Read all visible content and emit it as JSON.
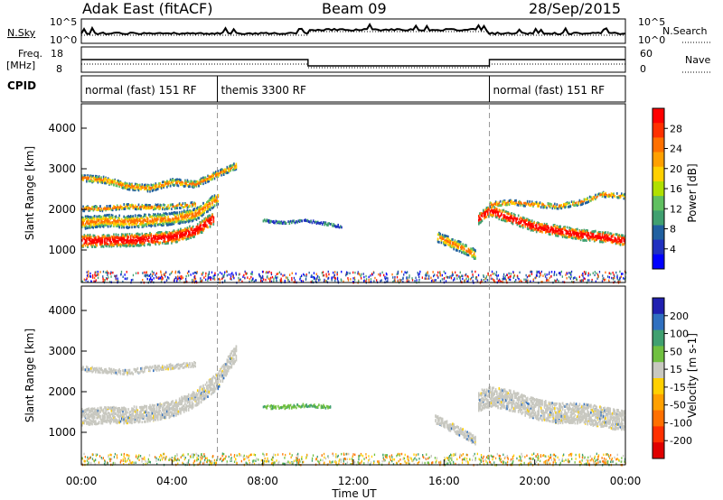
{
  "header": {
    "title": "Adak East (fitACF)",
    "beam": "Beam 09",
    "date": "28/Sep/2015"
  },
  "panel_nsky": {
    "label": "N.Sky",
    "ytick_top": "10^5",
    "ytick_bottom": "10^0",
    "right_label": "N.Search",
    "right_tick_top": "10^5",
    "right_tick_bottom": "10^0"
  },
  "panel_freq": {
    "label_line1": "Freq.",
    "label_line2": "[MHz]",
    "tick_top": "18",
    "tick_bottom": "8",
    "right_label": "Nave",
    "right_tick_top": "60",
    "right_tick_bottom": "0"
  },
  "panel_cpid": {
    "label": "CPID",
    "segments": [
      {
        "label": "normal (fast) 151 RF",
        "start_hour": 0,
        "end_hour": 6
      },
      {
        "label": "themis 3300 RF",
        "start_hour": 6,
        "end_hour": 18
      },
      {
        "label": "normal (fast) 151 RF",
        "start_hour": 18,
        "end_hour": 24
      }
    ]
  },
  "colorbars": {
    "power": {
      "label": "Power [dB]",
      "ticks": [
        "28",
        "24",
        "20",
        "16",
        "12",
        "8",
        "4"
      ],
      "colors": [
        "#ff0000",
        "#ff3000",
        "#ff7000",
        "#ffa000",
        "#ffd000",
        "#b0e000",
        "#60c060",
        "#40a070",
        "#2060a0",
        "#2030c0",
        "#0000ff"
      ]
    },
    "velocity": {
      "label": "Velocity [m s-1]",
      "ticks": [
        "200",
        "100",
        "50",
        "15",
        "-15",
        "-50",
        "-100",
        "-200"
      ],
      "colors": [
        "#2020b0",
        "#3070c0",
        "#40a070",
        "#70c040",
        "#c8c8c0",
        "#ffd000",
        "#ffa000",
        "#ff7000",
        "#ff3000",
        "#e00000"
      ]
    }
  },
  "chart_data": [
    {
      "type": "heatmap",
      "parameter": "Power",
      "ylabel": "Slant Range [km]",
      "ylim": [
        200,
        4600
      ],
      "yticks": [
        "4000",
        "3000",
        "2000",
        "1000"
      ],
      "xlim": [
        0,
        24
      ],
      "series": [
        {
          "hours": [
            0,
            1,
            2,
            3,
            4,
            5,
            5.8
          ],
          "center_km": [
            1250,
            1260,
            1270,
            1300,
            1350,
            1500,
            1800
          ],
          "width_km": 300,
          "level": "high"
        },
        {
          "hours": [
            0,
            1,
            2,
            3,
            4,
            5,
            6
          ],
          "center_km": [
            1700,
            1750,
            1720,
            1760,
            1800,
            1900,
            2300
          ],
          "width_km": 300,
          "level": "mid"
        },
        {
          "hours": [
            0,
            1,
            2,
            3,
            4,
            5
          ],
          "center_km": [
            2050,
            2050,
            2100,
            2080,
            2100,
            2150
          ],
          "width_km": 120,
          "level": "mid"
        },
        {
          "hours": [
            0,
            1,
            2,
            3,
            4,
            5,
            6,
            6.8
          ],
          "center_km": [
            2800,
            2750,
            2600,
            2550,
            2700,
            2650,
            2900,
            3100
          ],
          "width_km": 160,
          "level": "mid"
        },
        {
          "hours": [
            15.7,
            16.3,
            16.9,
            17.4
          ],
          "center_km": [
            1350,
            1200,
            1050,
            900
          ],
          "width_km": 250,
          "level": "mid"
        },
        {
          "hours": [
            17.5,
            18,
            19,
            20,
            21,
            22,
            23,
            24
          ],
          "center_km": [
            1800,
            2000,
            1800,
            1600,
            1500,
            1400,
            1350,
            1250
          ],
          "width_km": 260,
          "level": "high"
        },
        {
          "hours": [
            18,
            19,
            20,
            21,
            22,
            23,
            24
          ],
          "center_km": [
            2150,
            2200,
            2150,
            2100,
            2200,
            2400,
            2350
          ],
          "width_km": 120,
          "level": "mid"
        },
        {
          "hours": [
            8,
            9,
            9.8,
            10.5,
            11.5
          ],
          "center_km": [
            1750,
            1700,
            1750,
            1700,
            1600
          ],
          "width_km": 60,
          "level": "low"
        }
      ]
    },
    {
      "type": "heatmap",
      "parameter": "Velocity",
      "ylabel": "Slant Range [km]",
      "ylim": [
        200,
        4600
      ],
      "yticks": [
        "4000",
        "3000",
        "2000",
        "1000"
      ],
      "xlim": [
        0,
        24
      ],
      "xticks": [
        "00:00",
        "04:00",
        "08:00",
        "12:00",
        "16:00",
        "20:00",
        "00:00"
      ],
      "xlabel": "Time UT",
      "series": [
        {
          "hours": [
            0,
            1,
            2,
            3,
            4,
            5,
            6,
            6.8
          ],
          "center_km": [
            1400,
            1450,
            1450,
            1500,
            1600,
            1850,
            2300,
            3000
          ],
          "width_km": 400,
          "level": "gray"
        },
        {
          "hours": [
            0,
            1,
            2,
            3,
            4,
            5
          ],
          "center_km": [
            2600,
            2550,
            2500,
            2600,
            2650,
            2700
          ],
          "width_km": 120,
          "level": "gray"
        },
        {
          "hours": [
            15.6,
            16.3,
            17,
            17.4
          ],
          "center_km": [
            1350,
            1150,
            950,
            800
          ],
          "width_km": 200,
          "level": "gray"
        },
        {
          "hours": [
            17.5,
            18,
            19,
            20,
            21,
            22,
            23,
            24
          ],
          "center_km": [
            1800,
            1900,
            1800,
            1600,
            1500,
            1500,
            1400,
            1300
          ],
          "width_km": 500,
          "level": "gray"
        },
        {
          "hours": [
            8,
            9,
            10,
            11
          ],
          "center_km": [
            1650,
            1650,
            1700,
            1650
          ],
          "width_km": 80,
          "level": "green"
        }
      ]
    }
  ]
}
